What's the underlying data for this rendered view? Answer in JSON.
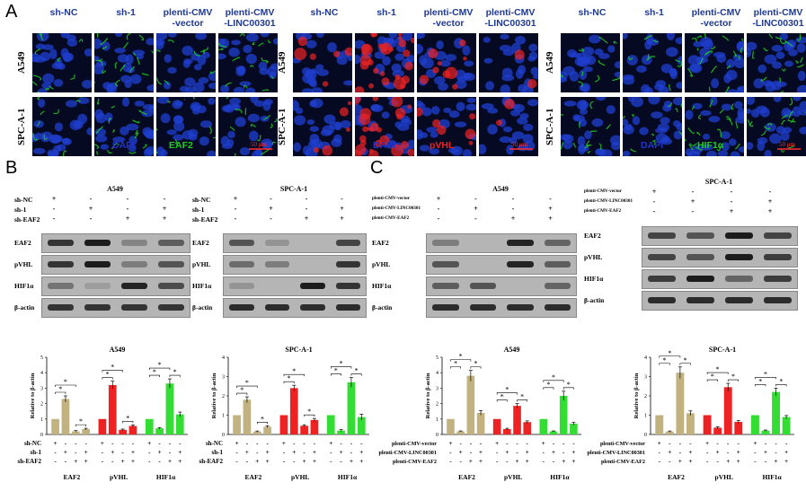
{
  "panels": {
    "A": "A",
    "B": "B",
    "C": "C"
  },
  "panel_a": {
    "row_labels": [
      "A549",
      "SPC-A-1"
    ],
    "groups": [
      {
        "columns": [
          "sh-NC",
          "sh-1",
          "plenti-CMV\n-vector",
          "plenti-CMV\n-LINC00301"
        ],
        "stain_dapi": "DAPI",
        "stain_marker": "EAF2",
        "marker_color": "#22cc22",
        "scale": "50 μm"
      },
      {
        "columns": [
          "sh-NC",
          "sh-1",
          "plenti-CMV\n-vector",
          "plenti-CMV\n-LINC00301"
        ],
        "stain_dapi": "DAPI",
        "stain_marker": "pVHL",
        "marker_color": "#ee2222",
        "scale": "50 μm"
      },
      {
        "columns": [
          "sh-NC",
          "sh-1",
          "plenti-CMV\n-vector",
          "plenti-CMV\n-LINC00301"
        ],
        "stain_dapi": "DAPI",
        "stain_marker": "HIF1α",
        "marker_color": "#22cc22",
        "scale": "50 μm"
      }
    ]
  },
  "blots": [
    {
      "title": "A549",
      "conditions": [
        {
          "label": "sh-NC",
          "signs": [
            "+",
            "-",
            "-",
            "-"
          ]
        },
        {
          "label": "sh-1",
          "signs": [
            "-",
            "+",
            "-",
            "+"
          ]
        },
        {
          "label": "sh-EAF2",
          "signs": [
            "-",
            "-",
            "+",
            "+"
          ]
        }
      ],
      "proteins": [
        "EAF2",
        "pVHL",
        "HIF1α",
        "β-actin"
      ]
    },
    {
      "title": "SPC-A-1",
      "conditions": [
        {
          "label": "sh-NC",
          "signs": [
            "+",
            "-",
            "-",
            "-"
          ]
        },
        {
          "label": "sh-1",
          "signs": [
            "-",
            "+",
            "-",
            "+"
          ]
        },
        {
          "label": "sh-EAF2",
          "signs": [
            "-",
            "-",
            "+",
            "+"
          ]
        }
      ],
      "proteins": [
        "EAF2",
        "pVHL",
        "HIF1α",
        "β-actin"
      ]
    },
    {
      "title": "A549",
      "conditions": [
        {
          "label": "plenti-CMV-vector",
          "signs": [
            "+",
            "-",
            "-",
            "-"
          ]
        },
        {
          "label": "plenti-CMV-LINC00301",
          "signs": [
            "-",
            "+",
            "-",
            "+"
          ]
        },
        {
          "label": "plenti-CMV-EAF2",
          "signs": [
            "-",
            "-",
            "+",
            "+"
          ]
        }
      ],
      "proteins": [
        "EAF2",
        "pVHL",
        "HIF1α",
        "β-actin"
      ]
    },
    {
      "title": "SPC-A-1",
      "conditions": [
        {
          "label": "plenti-CMV-vector",
          "signs": [
            "+",
            "-",
            "-",
            "-"
          ]
        },
        {
          "label": "plenti-CMV-LINC00301",
          "signs": [
            "-",
            "+",
            "-",
            "+"
          ]
        },
        {
          "label": "plenti-CMV-EAF2",
          "signs": [
            "-",
            "-",
            "+",
            "+"
          ]
        }
      ],
      "proteins": [
        "EAF2",
        "pVHL",
        "HIF1α",
        "β-actin"
      ]
    }
  ],
  "chart_data": [
    {
      "type": "bar",
      "title": "A549",
      "ylabel": "Relative to β-actin",
      "ylim": [
        0,
        5
      ],
      "yticks": [
        0,
        1,
        2,
        3,
        4,
        5
      ],
      "categories": [
        "EAF2",
        "pVHL",
        "HIF1α"
      ],
      "colors": [
        "#c2b280",
        "#ee2222",
        "#33dd33"
      ],
      "values": [
        [
          1.0,
          2.3,
          0.2,
          0.35
        ],
        [
          1.0,
          3.2,
          0.3,
          0.55
        ],
        [
          1.0,
          0.4,
          3.3,
          1.3
        ]
      ],
      "errors": [
        [
          0,
          0.2,
          0.05,
          0.05
        ],
        [
          0,
          0.25,
          0.05,
          0.07
        ],
        [
          0,
          0.05,
          0.3,
          0.15
        ]
      ],
      "conditions": [
        {
          "label": "sh-NC",
          "signs": [
            "+",
            "-",
            "-",
            "-"
          ]
        },
        {
          "label": "sh-1",
          "signs": [
            "-",
            "+",
            "-",
            "+"
          ]
        },
        {
          "label": "sh-EAF2",
          "signs": [
            "-",
            "-",
            "+",
            "+"
          ]
        }
      ],
      "significance": "*"
    },
    {
      "type": "bar",
      "title": "SPC-A-1",
      "ylabel": "Relative to β-actin",
      "ylim": [
        0,
        4
      ],
      "yticks": [
        0,
        1,
        2,
        3,
        4
      ],
      "categories": [
        "EAF2",
        "pVHL",
        "HIF1α"
      ],
      "colors": [
        "#c2b280",
        "#ee2222",
        "#33dd33"
      ],
      "values": [
        [
          1.0,
          1.8,
          0.15,
          0.4
        ],
        [
          1.0,
          2.4,
          0.45,
          0.75
        ],
        [
          1.0,
          0.2,
          2.7,
          0.9
        ]
      ],
      "errors": [
        [
          0,
          0.15,
          0.03,
          0.05
        ],
        [
          0,
          0.15,
          0.05,
          0.08
        ],
        [
          0,
          0.05,
          0.25,
          0.15
        ]
      ],
      "conditions": [
        {
          "label": "sh-NC",
          "signs": [
            "+",
            "-",
            "-",
            "-"
          ]
        },
        {
          "label": "sh-1",
          "signs": [
            "-",
            "+",
            "-",
            "+"
          ]
        },
        {
          "label": "sh-EAF2",
          "signs": [
            "-",
            "-",
            "+",
            "+"
          ]
        }
      ],
      "significance": "*"
    },
    {
      "type": "bar",
      "title": "A549",
      "ylabel": "Relative to β-actin",
      "ylim": [
        0,
        5
      ],
      "yticks": [
        0,
        1,
        2,
        3,
        4,
        5
      ],
      "categories": [
        "EAF2",
        "pVHL",
        "HIF1α"
      ],
      "colors": [
        "#c2b280",
        "#ee2222",
        "#33dd33"
      ],
      "values": [
        [
          1.0,
          0.2,
          3.8,
          1.4
        ],
        [
          1.0,
          0.35,
          1.85,
          0.8
        ],
        [
          1.0,
          0.2,
          2.5,
          0.7
        ]
      ],
      "errors": [
        [
          0,
          0.03,
          0.35,
          0.15
        ],
        [
          0,
          0.05,
          0.15,
          0.08
        ],
        [
          0,
          0.03,
          0.3,
          0.08
        ]
      ],
      "conditions": [
        {
          "label": "plenti-CMV-vector",
          "signs": [
            "+",
            "-",
            "-",
            "-"
          ]
        },
        {
          "label": "plenti-CMV-LINC00301",
          "signs": [
            "-",
            "+",
            "-",
            "+"
          ]
        },
        {
          "label": "plenti-CMV-EAF2",
          "signs": [
            "-",
            "-",
            "+",
            "+"
          ]
        }
      ],
      "significance": "*"
    },
    {
      "type": "bar",
      "title": "SPC-A-1",
      "ylabel": "Relative to β-actin",
      "ylim": [
        0,
        4
      ],
      "yticks": [
        0,
        1,
        2,
        3,
        4
      ],
      "categories": [
        "EAF2",
        "pVHL",
        "HIF1α"
      ],
      "colors": [
        "#c2b280",
        "#ee2222",
        "#33dd33"
      ],
      "values": [
        [
          1.0,
          0.15,
          3.2,
          1.1
        ],
        [
          1.0,
          0.35,
          2.45,
          0.65
        ],
        [
          1.0,
          0.2,
          2.2,
          0.9
        ]
      ],
      "errors": [
        [
          0,
          0.03,
          0.3,
          0.12
        ],
        [
          0,
          0.05,
          0.2,
          0.07
        ],
        [
          0,
          0.03,
          0.2,
          0.08
        ]
      ],
      "conditions": [
        {
          "label": "plenti-CMV-vector",
          "signs": [
            "+",
            "-",
            "-",
            "-"
          ]
        },
        {
          "label": "plenti-CMV-LINC00301",
          "signs": [
            "-",
            "+",
            "-",
            "+"
          ]
        },
        {
          "label": "plenti-CMV-EAF2",
          "signs": [
            "-",
            "-",
            "+",
            "+"
          ]
        }
      ],
      "significance": "*"
    }
  ]
}
